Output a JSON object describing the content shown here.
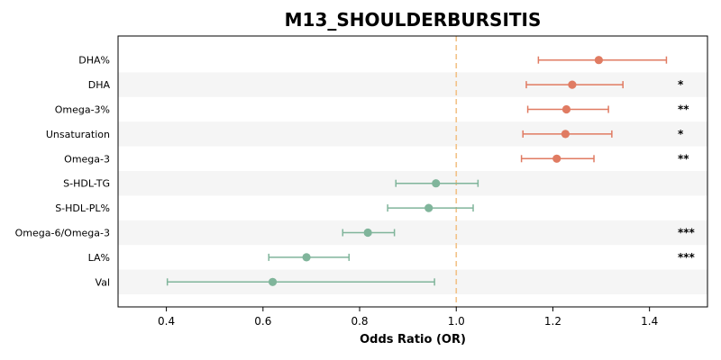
{
  "chart_data": {
    "type": "forest",
    "title": "M13_SHOULDERBURSITIS",
    "xlabel": "Odds Ratio (OR)",
    "xlim": [
      0.3,
      1.52
    ],
    "xticks": [
      0.4,
      0.6,
      0.8,
      1.0,
      1.2,
      1.4
    ],
    "xtick_labels": [
      "0.4",
      "0.6",
      "0.8",
      "1.0",
      "1.2",
      "1.4"
    ],
    "reference_line": 1.0,
    "rows": [
      {
        "label": "DHA%",
        "or": 1.295,
        "lo": 1.17,
        "hi": 1.435,
        "sig": "",
        "direction": "risk"
      },
      {
        "label": "DHA",
        "or": 1.24,
        "lo": 1.145,
        "hi": 1.345,
        "sig": "*",
        "direction": "risk"
      },
      {
        "label": "Omega-3%",
        "or": 1.228,
        "lo": 1.148,
        "hi": 1.315,
        "sig": "**",
        "direction": "risk"
      },
      {
        "label": "Unsaturation",
        "or": 1.226,
        "lo": 1.138,
        "hi": 1.322,
        "sig": "*",
        "direction": "risk"
      },
      {
        "label": "Omega-3",
        "or": 1.208,
        "lo": 1.135,
        "hi": 1.285,
        "sig": "**",
        "direction": "risk"
      },
      {
        "label": "S-HDL-TG",
        "or": 0.958,
        "lo": 0.875,
        "hi": 1.045,
        "sig": "",
        "direction": "protective"
      },
      {
        "label": "S-HDL-PL%",
        "or": 0.943,
        "lo": 0.858,
        "hi": 1.035,
        "sig": "",
        "direction": "protective"
      },
      {
        "label": "Omega-6/Omega-3",
        "or": 0.817,
        "lo": 0.765,
        "hi": 0.872,
        "sig": "***",
        "direction": "protective"
      },
      {
        "label": "LA%",
        "or": 0.69,
        "lo": 0.612,
        "hi": 0.778,
        "sig": "***",
        "direction": "protective"
      },
      {
        "label": "Val",
        "or": 0.62,
        "lo": 0.402,
        "hi": 0.955,
        "sig": "",
        "direction": "protective"
      }
    ],
    "colors": {
      "risk": "#e07b62",
      "protective": "#80b59b",
      "reference_line": "#f2c287",
      "band": "#f5f5f5"
    }
  }
}
